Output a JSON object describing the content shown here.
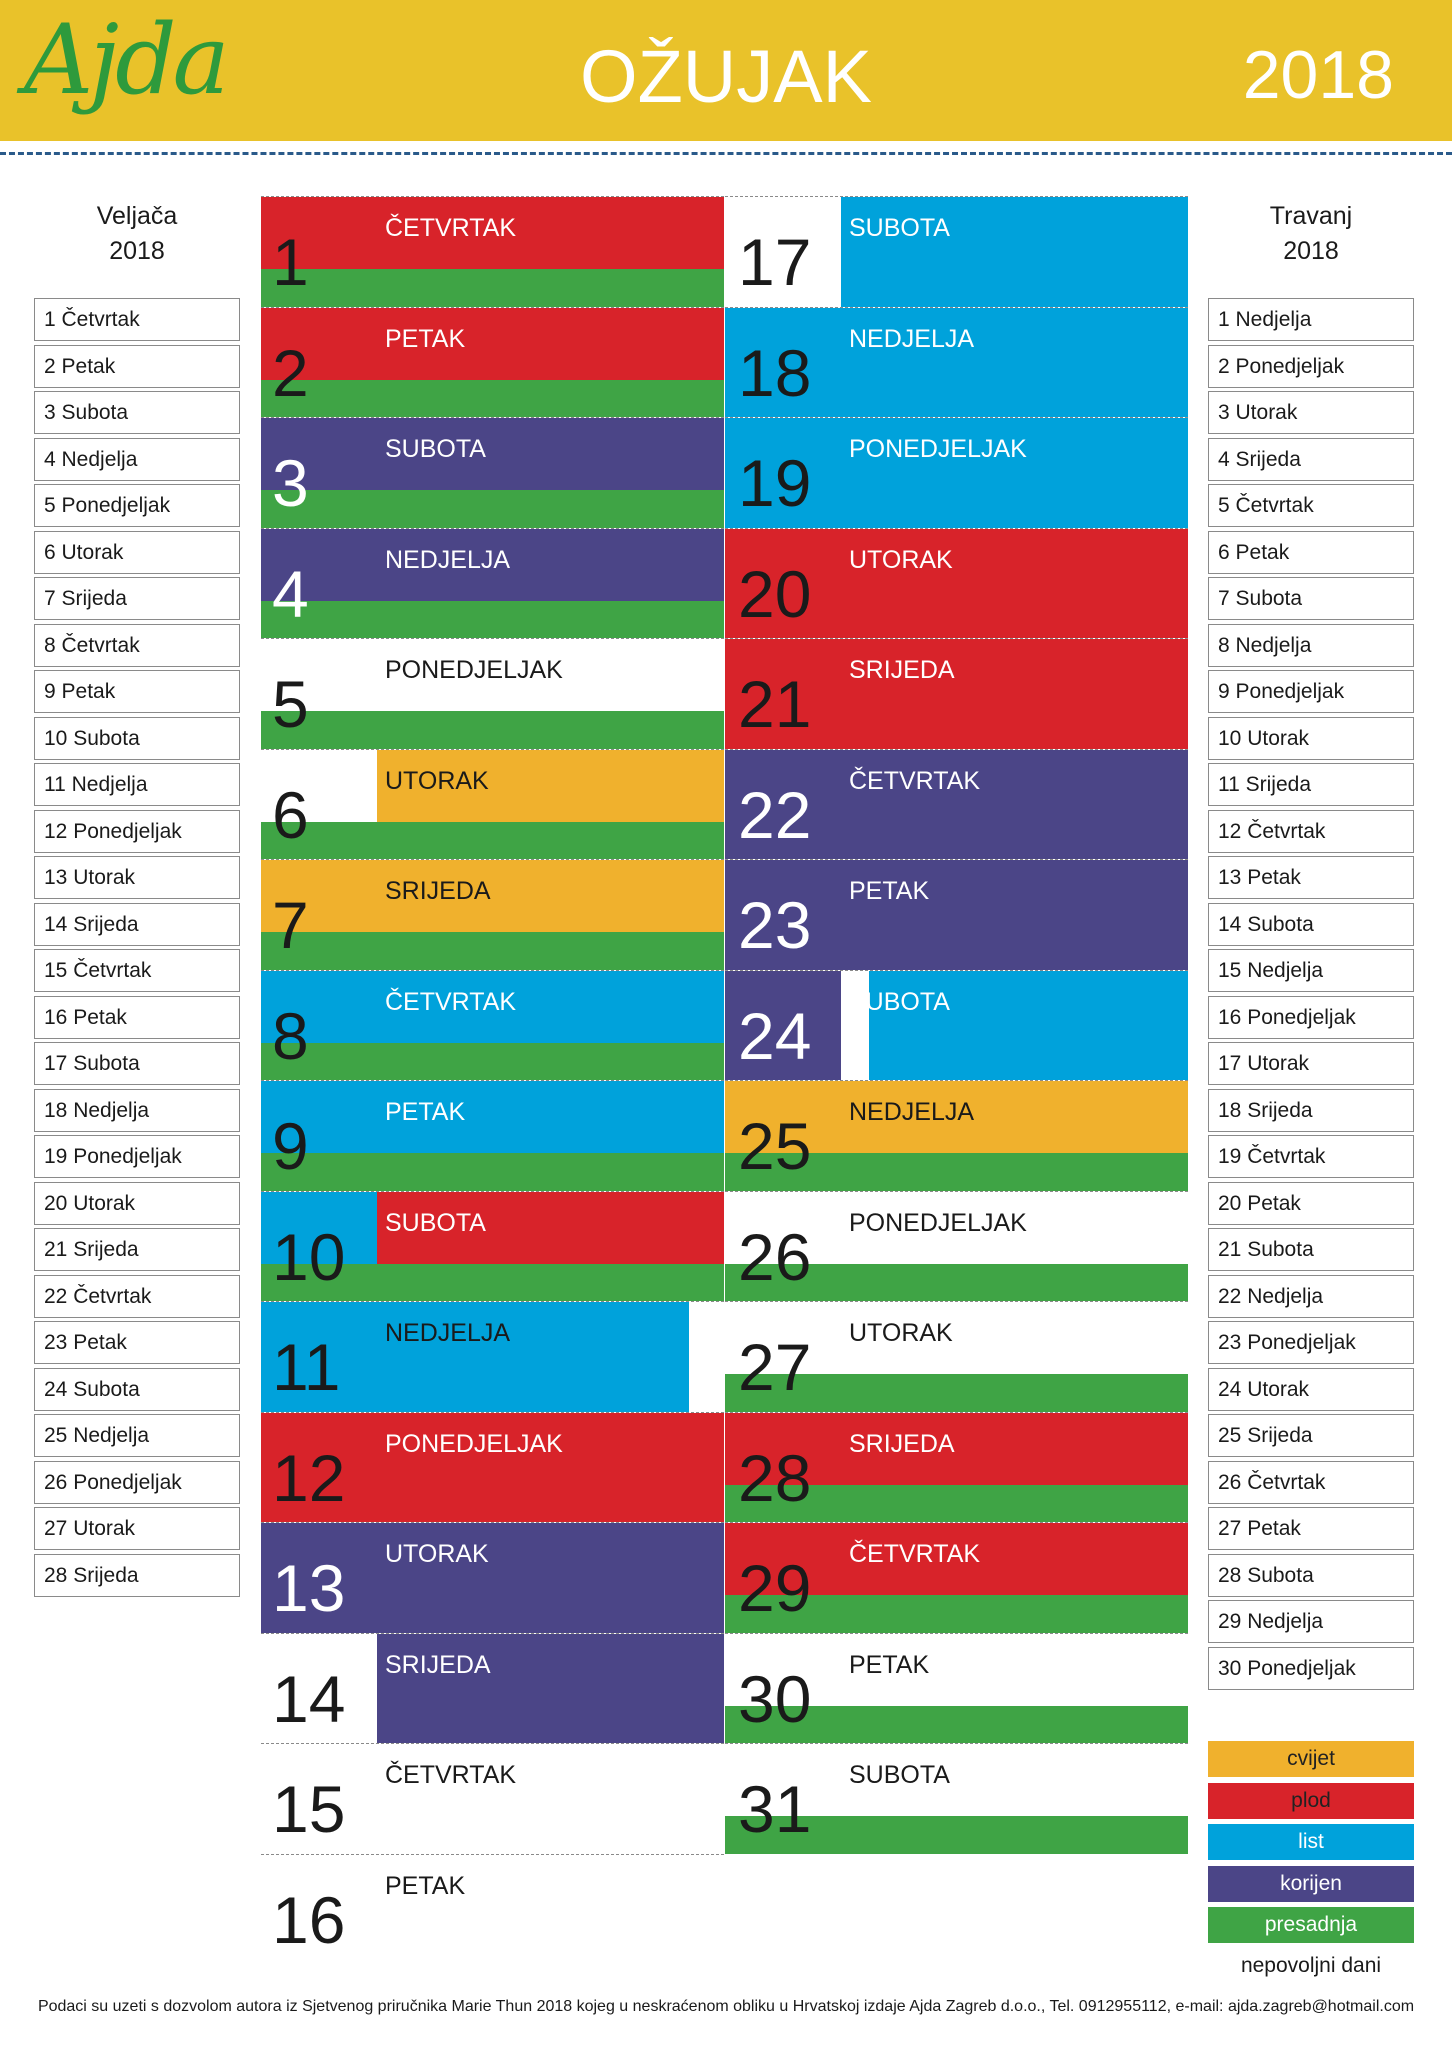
{
  "header": {
    "logo": "Ajda",
    "title": "OŽUJAK",
    "year": "2018"
  },
  "previous_month": {
    "title": "Veljača",
    "year": "2018",
    "days": [
      "1 Četvrtak",
      "2 Petak",
      "3 Subota",
      "4 Nedjelja",
      "5 Ponedjeljak",
      "6 Utorak",
      "7 Srijeda",
      "8 Četvrtak",
      "9 Petak",
      "10 Subota",
      "11 Nedjelja",
      "12 Ponedjeljak",
      "13 Utorak",
      "14 Srijeda",
      "15 Četvrtak",
      "16 Petak",
      "17 Subota",
      "18 Nedjelja",
      "19 Ponedjeljak",
      "20 Utorak",
      "21 Srijeda",
      "22 Četvrtak",
      "23 Petak",
      "24 Subota",
      "25 Nedjelja",
      "26 Ponedjeljak",
      "27 Utorak",
      "28 Srijeda"
    ]
  },
  "next_month": {
    "title": "Travanj",
    "year": "2018",
    "days": [
      "1 Nedjelja",
      "2 Ponedjeljak",
      "3 Utorak",
      "4 Srijeda",
      "5 Četvrtak",
      "6 Petak",
      "7 Subota",
      "8 Nedjelja",
      "9 Ponedjeljak",
      "10 Utorak",
      "11 Srijeda",
      "12 Četvrtak",
      "13 Petak",
      "14 Subota",
      "15 Nedjelja",
      "16 Ponedjeljak",
      "17 Utorak",
      "18 Srijeda",
      "19 Četvrtak",
      "20 Petak",
      "21 Subota",
      "22 Nedjelja",
      "23 Ponedjeljak",
      "24 Utorak",
      "25 Srijeda",
      "26 Četvrtak",
      "27 Petak",
      "28 Subota",
      "29 Nedjelja",
      "30 Ponedjeljak"
    ]
  },
  "calendar": {
    "days": [
      {
        "day": 1,
        "name": "ČETVRTAK",
        "colors": [
          "plod"
        ],
        "presadnja": true
      },
      {
        "day": 2,
        "name": "PETAK",
        "colors": [
          "plod"
        ],
        "presadnja": true
      },
      {
        "day": 3,
        "name": "SUBOTA",
        "colors": [
          "korijen"
        ],
        "presadnja": true
      },
      {
        "day": 4,
        "name": "NEDJELJA",
        "colors": [
          "korijen"
        ],
        "presadnja": true
      },
      {
        "day": 5,
        "name": "PONEDJELJAK",
        "colors": [
          null
        ],
        "presadnja": true
      },
      {
        "day": 6,
        "name": "UTORAK",
        "colors": [
          null,
          "cvijet"
        ],
        "presadnja": true
      },
      {
        "day": 7,
        "name": "SRIJEDA",
        "colors": [
          "cvijet"
        ],
        "presadnja": true
      },
      {
        "day": 8,
        "name": "ČETVRTAK",
        "colors": [
          "list"
        ],
        "presadnja": true
      },
      {
        "day": 9,
        "name": "PETAK",
        "colors": [
          "list"
        ],
        "presadnja": true
      },
      {
        "day": 10,
        "name": "SUBOTA",
        "colors": [
          "list",
          "plod"
        ],
        "presadnja": true
      },
      {
        "day": 11,
        "name": "NEDJELJA",
        "colors": [
          "list",
          null
        ],
        "presadnja": false
      },
      {
        "day": 12,
        "name": "PONEDJELJAK",
        "colors": [
          "plod"
        ],
        "presadnja": false
      },
      {
        "day": 13,
        "name": "UTORAK",
        "colors": [
          "korijen"
        ],
        "presadnja": false
      },
      {
        "day": 14,
        "name": "SRIJEDA",
        "colors": [
          null,
          "korijen"
        ],
        "presadnja": false
      },
      {
        "day": 15,
        "name": "ČETVRTAK",
        "colors": [
          null
        ],
        "presadnja": false
      },
      {
        "day": 16,
        "name": "PETAK",
        "colors": [
          null
        ],
        "presadnja": false
      },
      {
        "day": 17,
        "name": "SUBOTA",
        "colors": [
          null,
          "list"
        ],
        "presadnja": false
      },
      {
        "day": 18,
        "name": "NEDJELJA",
        "colors": [
          "list"
        ],
        "presadnja": false
      },
      {
        "day": 19,
        "name": "PONEDJELJAK",
        "colors": [
          "list"
        ],
        "presadnja": false
      },
      {
        "day": 20,
        "name": "UTORAK",
        "colors": [
          "plod"
        ],
        "presadnja": false
      },
      {
        "day": 21,
        "name": "SRIJEDA",
        "colors": [
          "plod"
        ],
        "presadnja": false
      },
      {
        "day": 22,
        "name": "ČETVRTAK",
        "colors": [
          "korijen"
        ],
        "presadnja": false
      },
      {
        "day": 23,
        "name": "PETAK",
        "colors": [
          "korijen"
        ],
        "presadnja": false
      },
      {
        "day": 24,
        "name": "SUBOTA",
        "colors": [
          "korijen",
          null,
          "list"
        ],
        "presadnja": false
      },
      {
        "day": 25,
        "name": "NEDJELJA",
        "colors": [
          "cvijet"
        ],
        "presadnja": true
      },
      {
        "day": 26,
        "name": "PONEDJELJAK",
        "colors": [
          null
        ],
        "presadnja": true
      },
      {
        "day": 27,
        "name": "UTORAK",
        "colors": [
          null
        ],
        "presadnja": true
      },
      {
        "day": 28,
        "name": "SRIJEDA",
        "colors": [
          "plod"
        ],
        "presadnja": true
      },
      {
        "day": 29,
        "name": "ČETVRTAK",
        "colors": [
          "plod"
        ],
        "presadnja": true
      },
      {
        "day": 30,
        "name": "PETAK",
        "colors": [
          null
        ],
        "presadnja": true
      },
      {
        "day": 31,
        "name": "SUBOTA",
        "colors": [
          null
        ],
        "presadnja": true
      }
    ]
  },
  "legend": {
    "items": [
      {
        "label": "cvijet",
        "color": "#f0b12d"
      },
      {
        "label": "plod",
        "color": "#d8232a"
      },
      {
        "label": "list",
        "color": "#00a2db"
      },
      {
        "label": "korijen",
        "color": "#4b4587"
      },
      {
        "label": "presadnja",
        "color": "#3fa445"
      }
    ],
    "unfavourable": "nepovoljni dani"
  },
  "footer": "Podaci su uzeti s dozvolom autora iz Sjetvenog priručnika Marie Thun 2018 kojeg u  neskraćenom obliku u Hrvatskoj izdaje Ajda Zagreb d.o.o., Tel. 0912955112, e-mail: ajda.zagreb@hotmail.com"
}
